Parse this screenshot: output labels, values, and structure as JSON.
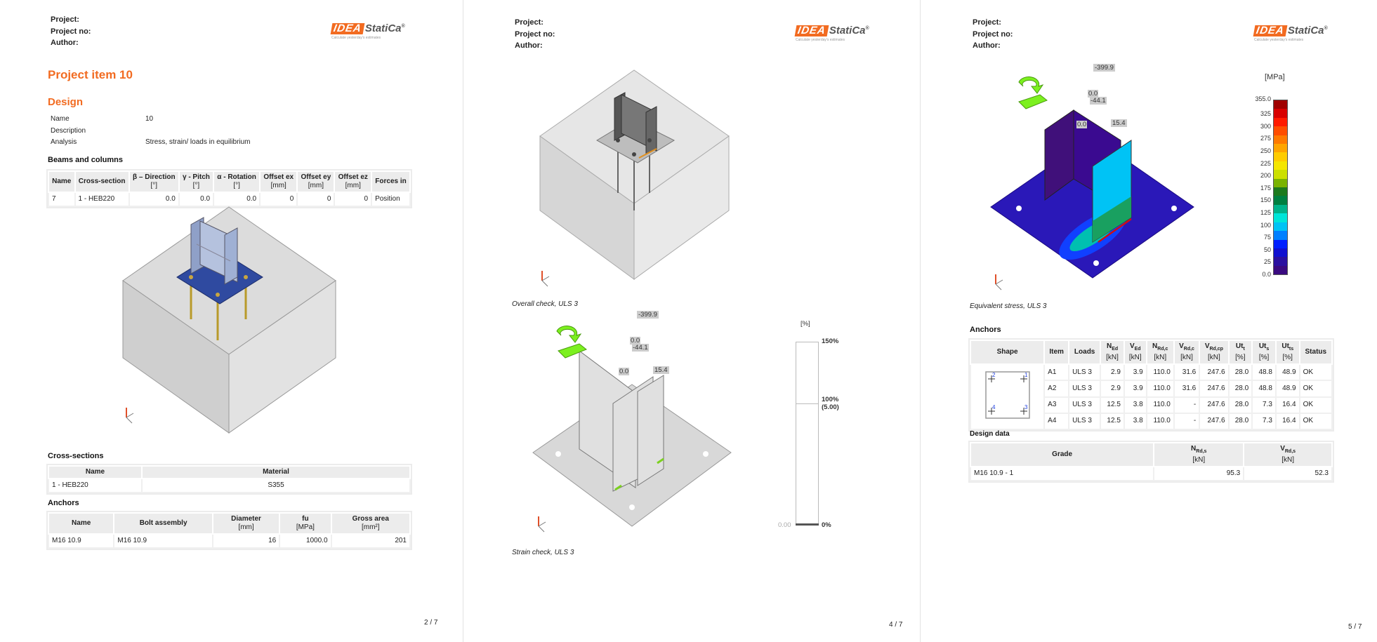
{
  "pages": [
    {
      "page_number": "2 / 7",
      "header": {
        "project": "Project:",
        "project_no": "Project no:",
        "author": "Author:"
      },
      "logo": {
        "mark": "IDEA",
        "brand": "StatiCa",
        "reg": "®",
        "tagline": "Calculate yesterday's estimates"
      },
      "title": "Project item 10",
      "design": {
        "heading": "Design",
        "rows": [
          {
            "label": "Name",
            "value": "10"
          },
          {
            "label": "Description",
            "value": ""
          },
          {
            "label": "Analysis",
            "value": "Stress, strain/ loads in equilibrium"
          }
        ]
      },
      "beams": {
        "heading": "Beams and columns",
        "columns": [
          {
            "h": "Name",
            "u": ""
          },
          {
            "h": "Cross-section",
            "u": ""
          },
          {
            "h": "β – Direction",
            "u": "[°]"
          },
          {
            "h": "γ - Pitch",
            "u": "[°]"
          },
          {
            "h": "α - Rotation",
            "u": "[°]"
          },
          {
            "h": "Offset ex",
            "u": "[mm]"
          },
          {
            "h": "Offset ey",
            "u": "[mm]"
          },
          {
            "h": "Offset ez",
            "u": "[mm]"
          },
          {
            "h": "Forces in",
            "u": ""
          }
        ],
        "rows": [
          [
            "7",
            "1 - HEB220",
            "0.0",
            "0.0",
            "0.0",
            "0",
            "0",
            "0",
            "Position"
          ]
        ]
      },
      "cross_sections": {
        "heading": "Cross-sections",
        "columns": [
          "Name",
          "Material"
        ],
        "rows": [
          [
            "1 - HEB220",
            "S355"
          ]
        ]
      },
      "anchors": {
        "heading": "Anchors",
        "columns": [
          {
            "h": "Name",
            "u": ""
          },
          {
            "h": "Bolt assembly",
            "u": ""
          },
          {
            "h": "Diameter",
            "u": "[mm]"
          },
          {
            "h": "fu",
            "u": "[MPa]"
          },
          {
            "h": "Gross area",
            "u": "[mm²]"
          }
        ],
        "rows": [
          [
            "M16 10.9",
            "M16 10.9",
            "16",
            "1000.0",
            "201"
          ]
        ]
      }
    },
    {
      "page_number": "4 / 7",
      "header": {
        "project": "Project:",
        "project_no": "Project no:",
        "author": "Author:"
      },
      "caption_overall": "Overall check, ULS 3",
      "caption_strain": "Strain check, ULS 3",
      "load_labels": {
        "n": "-399.9",
        "m1": "0.0",
        "v": "-44.1",
        "m2": "0.0",
        "v2": "15.4"
      },
      "strain_scale": {
        "unit": "[%]",
        "top": "150%",
        "mid": "100%",
        "mid_value": "(5.00)",
        "bottom": "0%",
        "current": "0.00",
        "current_fraction": 0
      }
    },
    {
      "page_number": "5 / 7",
      "header": {
        "project": "Project:",
        "project_no": "Project no:",
        "author": "Author:"
      },
      "caption_stress": "Equivalent stress, ULS 3",
      "load_labels": {
        "n": "-399.9",
        "m1": "0.0",
        "v": "-44.1",
        "m2": "0.0",
        "v2": "15.4"
      },
      "stress_legend": {
        "unit": "[MPa]",
        "ticks": [
          "355.0",
          "325",
          "300",
          "275",
          "250",
          "225",
          "200",
          "175",
          "150",
          "125",
          "100",
          "75",
          "50",
          "25",
          "0.0"
        ],
        "colors": [
          "#a00000",
          "#d80000",
          "#ff1a00",
          "#ff4d00",
          "#ff7a00",
          "#ffa500",
          "#ffcc00",
          "#f5e600",
          "#cce000",
          "#7ab300",
          "#1d7a1d",
          "#008040",
          "#00b38a",
          "#00e5d9",
          "#00c3f5",
          "#0080ff",
          "#0020ff",
          "#1010d0",
          "#2a10a0",
          "#3a0a80"
        ]
      },
      "anchors": {
        "heading": "Anchors",
        "columns": [
          {
            "h": "Shape",
            "s": "",
            "u": ""
          },
          {
            "h": "Item",
            "s": "",
            "u": ""
          },
          {
            "h": "Loads",
            "s": "",
            "u": ""
          },
          {
            "h": "N",
            "s": "Ed",
            "u": "[kN]"
          },
          {
            "h": "V",
            "s": "Ed",
            "u": "[kN]"
          },
          {
            "h": "N",
            "s": "Rd,c",
            "u": "[kN]"
          },
          {
            "h": "V",
            "s": "Rd,c",
            "u": "[kN]"
          },
          {
            "h": "V",
            "s": "Rd,cp",
            "u": "[kN]"
          },
          {
            "h": "Ut",
            "s": "t",
            "u": "[%]"
          },
          {
            "h": "Ut",
            "s": "s",
            "u": "[%]"
          },
          {
            "h": "Ut",
            "s": "ts",
            "u": "[%]"
          },
          {
            "h": "Status",
            "s": "",
            "u": ""
          }
        ],
        "shape_labels": [
          "2",
          "1",
          "4",
          "3"
        ],
        "rows": [
          [
            "A1",
            "ULS 3",
            "2.9",
            "3.9",
            "110.0",
            "31.6",
            "247.6",
            "28.0",
            "48.8",
            "48.9",
            "OK"
          ],
          [
            "A2",
            "ULS 3",
            "2.9",
            "3.9",
            "110.0",
            "31.6",
            "247.6",
            "28.0",
            "48.8",
            "48.9",
            "OK"
          ],
          [
            "A3",
            "ULS 3",
            "12.5",
            "3.8",
            "110.0",
            "-",
            "247.6",
            "28.0",
            "7.3",
            "16.4",
            "OK"
          ],
          [
            "A4",
            "ULS 3",
            "12.5",
            "3.8",
            "110.0",
            "-",
            "247.6",
            "28.0",
            "7.3",
            "16.4",
            "OK"
          ]
        ]
      },
      "design_data": {
        "heading": "Design data",
        "columns": [
          {
            "h": "Grade",
            "s": "",
            "u": ""
          },
          {
            "h": "N",
            "s": "Rd,s",
            "u": "[kN]"
          },
          {
            "h": "V",
            "s": "Rd,s",
            "u": "[kN]"
          }
        ],
        "rows": [
          [
            "M16 10.9 - 1",
            "95.3",
            "52.3"
          ]
        ]
      }
    }
  ]
}
